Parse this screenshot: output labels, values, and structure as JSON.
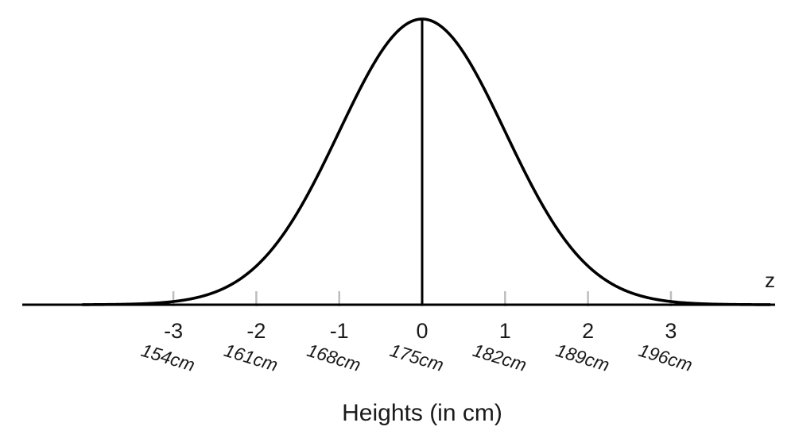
{
  "chart_data": {
    "type": "line",
    "curve": "standard-normal-density",
    "mean_z": 0,
    "sd_z": 1,
    "xlim": [
      -4.1,
      4.2
    ],
    "ticks": [
      {
        "z": -3,
        "z_label": "-3",
        "height_label": "154cm"
      },
      {
        "z": -2,
        "z_label": "-2",
        "height_label": "161cm"
      },
      {
        "z": -1,
        "z_label": "-1",
        "height_label": "168cm"
      },
      {
        "z": 0,
        "z_label": "0",
        "height_label": "175cm"
      },
      {
        "z": 1,
        "z_label": "1",
        "height_label": "182cm"
      },
      {
        "z": 2,
        "z_label": "2",
        "height_label": "189cm"
      },
      {
        "z": 3,
        "z_label": "3",
        "height_label": "196cm"
      }
    ],
    "axis_variable": "z",
    "xlabel": "Heights (in cm)",
    "mean_line": true,
    "colors": {
      "curve": "#000000",
      "axis": "#000000",
      "tick": "#bdbdbd"
    }
  }
}
